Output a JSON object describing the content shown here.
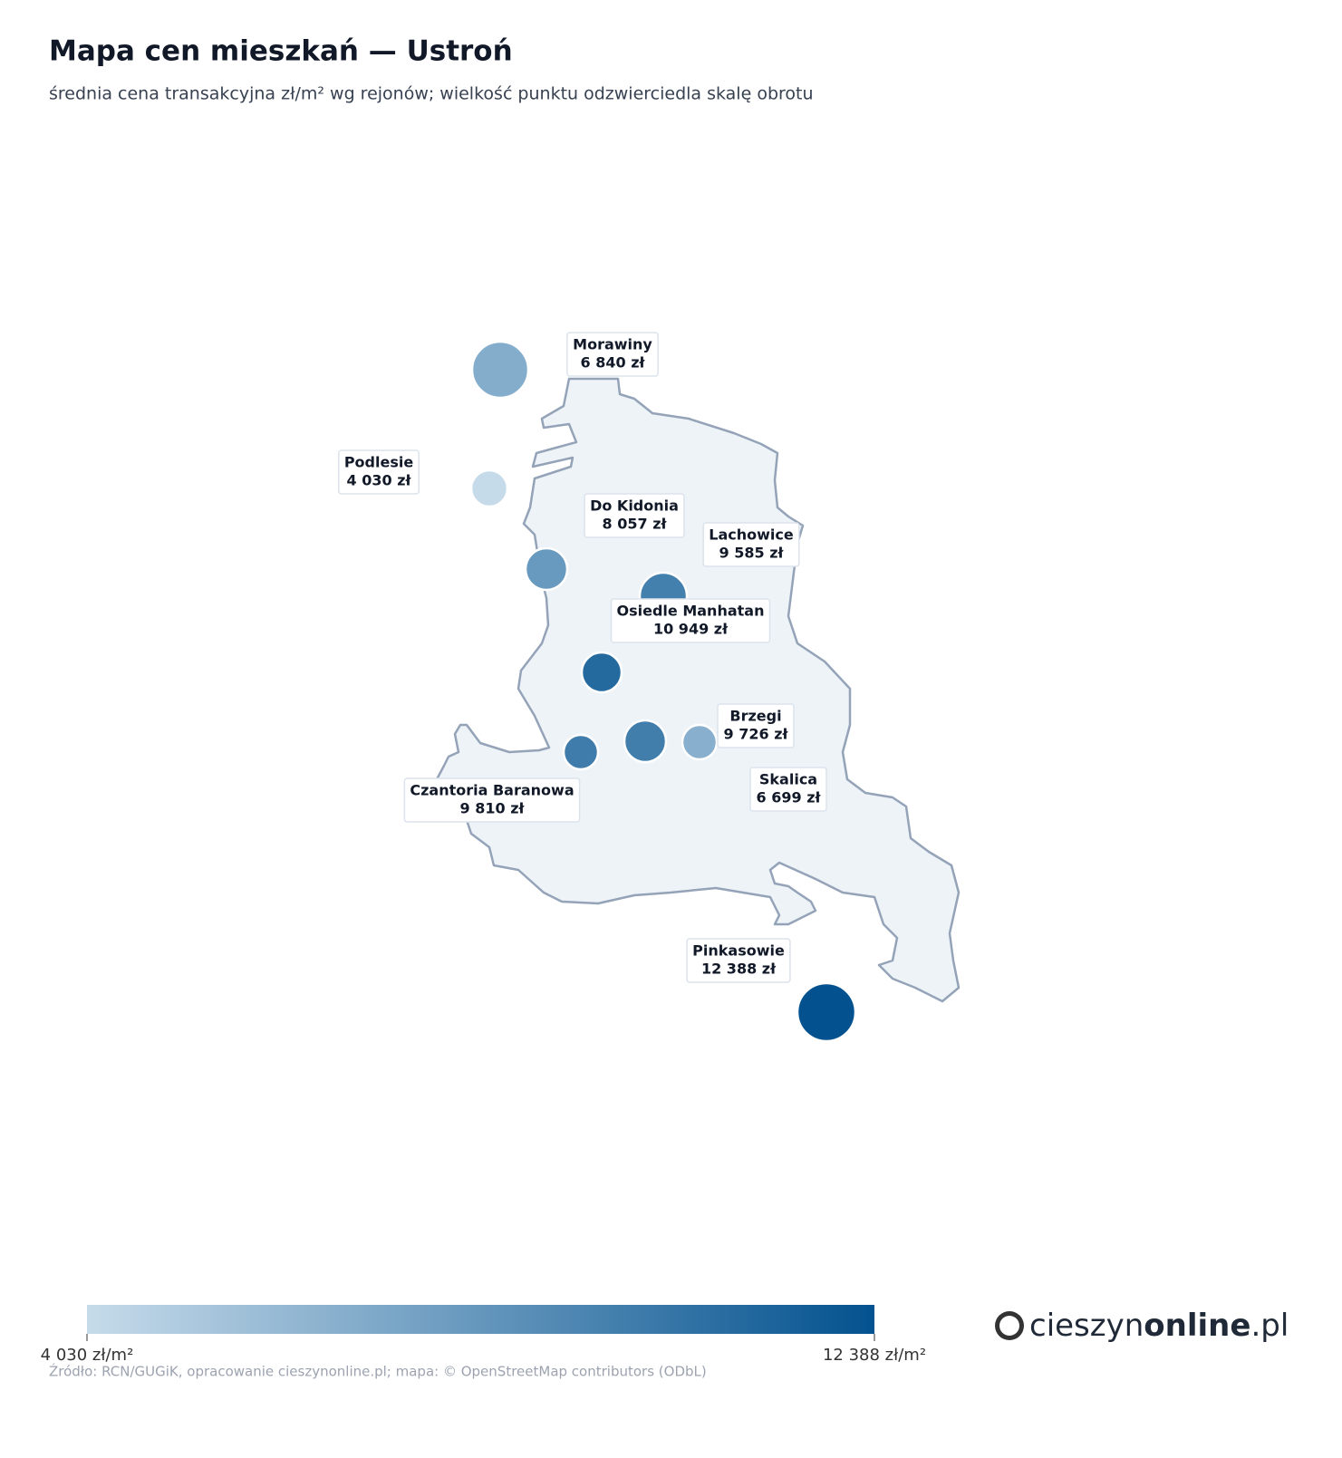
{
  "chart_data": {
    "type": "bubble-map",
    "title": "Mapa cen mieszkań — Ustroń",
    "subtitle": "średnia cena transakcyjna zł/m² wg rejonów; wielkość punktu odzwierciedla skalę obrotu",
    "categories": [
      "Morawiny",
      "Podlesie",
      "Do Kidonia",
      "Lachowice",
      "Osiedle Manhatan",
      "Brzegi",
      "Czantoria Baranowa",
      "Skalica",
      "Pinkasowie"
    ],
    "values": [
      6840,
      4030,
      8057,
      9585,
      10949,
      9726,
      9810,
      6699,
      12388
    ],
    "value_labels": [
      "6 840 zł",
      "4 030 zł",
      "8 057 zł",
      "9 585 zł",
      "10 949 zł",
      "9 726 zł",
      "9 810 zł",
      "6 699 zł",
      "12 388 zł"
    ],
    "colorscale": [
      "#c6dbea",
      "#03528f"
    ],
    "clim": [
      4030,
      12388
    ],
    "cticks": [
      {
        "value": 4030,
        "label": "4 030 zł/m²"
      },
      {
        "value": 12388,
        "label": "12 388 zł/m²"
      }
    ],
    "source": "Źródło: RCN/GUGiK, opracowanie cieszynonline.pl; mapa: © OpenStreetMap contributors (ODbL)",
    "logo": {
      "prefix": "cieszyn",
      "bold": "online",
      "suffix": ".pl"
    }
  }
}
